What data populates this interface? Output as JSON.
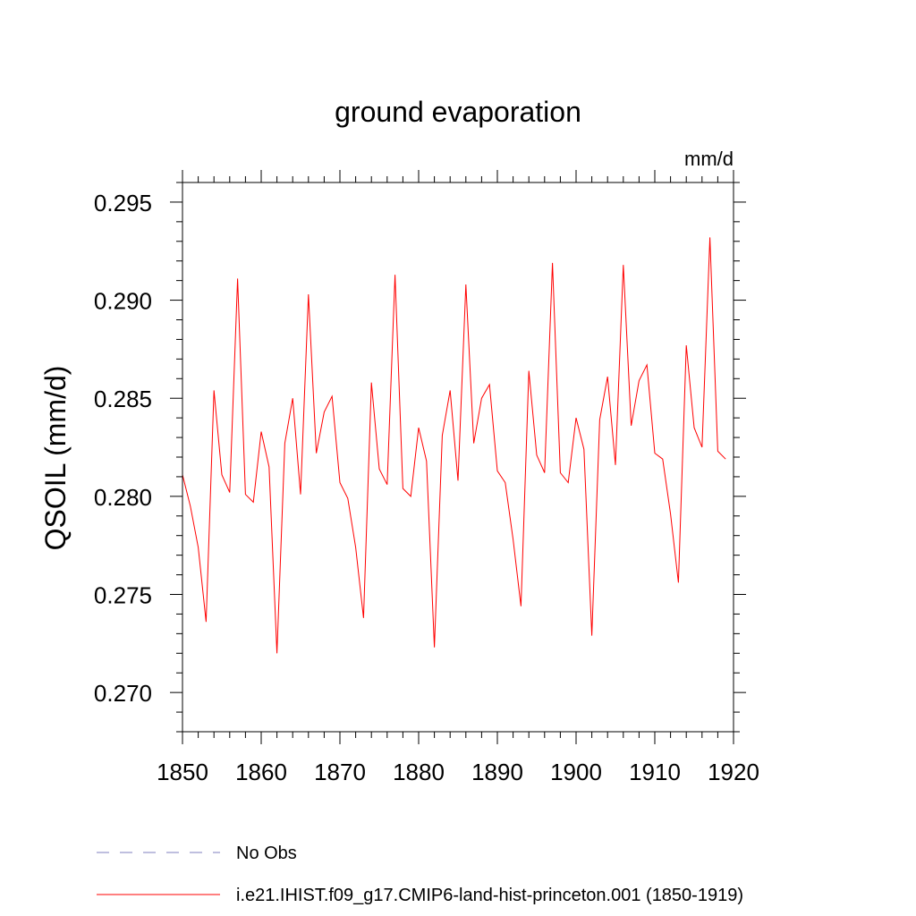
{
  "chart_data": {
    "type": "line",
    "title": "ground evaporation",
    "units_label": "mm/d",
    "xlabel": "",
    "ylabel": "QSOIL  (mm/d)",
    "xlim": [
      1850,
      1920
    ],
    "ylim": [
      0.268,
      0.296
    ],
    "x_ticks": [
      1850,
      1860,
      1870,
      1880,
      1890,
      1900,
      1910,
      1920
    ],
    "y_ticks": [
      "0.270",
      "0.275",
      "0.280",
      "0.285",
      "0.290",
      "0.295"
    ],
    "grid": false,
    "legend_position": "bottom",
    "series": [
      {
        "name": "i.e21.IHIST.f09_g17.CMIP6-land-hist-princeton.001 (1850-1919)",
        "color": "#ff0000",
        "x": [
          1850,
          1851,
          1852,
          1853,
          1854,
          1855,
          1856,
          1857,
          1858,
          1859,
          1860,
          1861,
          1862,
          1863,
          1864,
          1865,
          1866,
          1867,
          1868,
          1869,
          1870,
          1871,
          1872,
          1873,
          1874,
          1875,
          1876,
          1877,
          1878,
          1879,
          1880,
          1881,
          1882,
          1883,
          1884,
          1885,
          1886,
          1887,
          1888,
          1889,
          1890,
          1891,
          1892,
          1893,
          1894,
          1895,
          1896,
          1897,
          1898,
          1899,
          1900,
          1901,
          1902,
          1903,
          1904,
          1905,
          1906,
          1907,
          1908,
          1909,
          1910,
          1911,
          1912,
          1913,
          1914,
          1915,
          1916,
          1917,
          1918,
          1919
        ],
        "values": [
          0.2811,
          0.2795,
          0.2774,
          0.2736,
          0.2854,
          0.2811,
          0.2802,
          0.2911,
          0.2801,
          0.2797,
          0.2833,
          0.2815,
          0.272,
          0.2827,
          0.285,
          0.2801,
          0.2903,
          0.2822,
          0.2843,
          0.2851,
          0.2807,
          0.2799,
          0.2774,
          0.2738,
          0.2858,
          0.2814,
          0.2806,
          0.2913,
          0.2804,
          0.28,
          0.2835,
          0.2818,
          0.2723,
          0.2831,
          0.2854,
          0.2808,
          0.2908,
          0.2827,
          0.285,
          0.2857,
          0.2813,
          0.2807,
          0.2778,
          0.2744,
          0.2864,
          0.2821,
          0.2812,
          0.2919,
          0.2812,
          0.2807,
          0.284,
          0.2824,
          0.2729,
          0.2839,
          0.2861,
          0.2816,
          0.2918,
          0.2836,
          0.2859,
          0.2867,
          0.2822,
          0.2819,
          0.2791,
          0.2756,
          0.2877,
          0.2835,
          0.2825,
          0.2932,
          0.2823,
          0.2819
        ]
      }
    ],
    "reference_series": {
      "name": "No Obs",
      "color": "#7f7fbf",
      "dash": "dashed"
    }
  }
}
